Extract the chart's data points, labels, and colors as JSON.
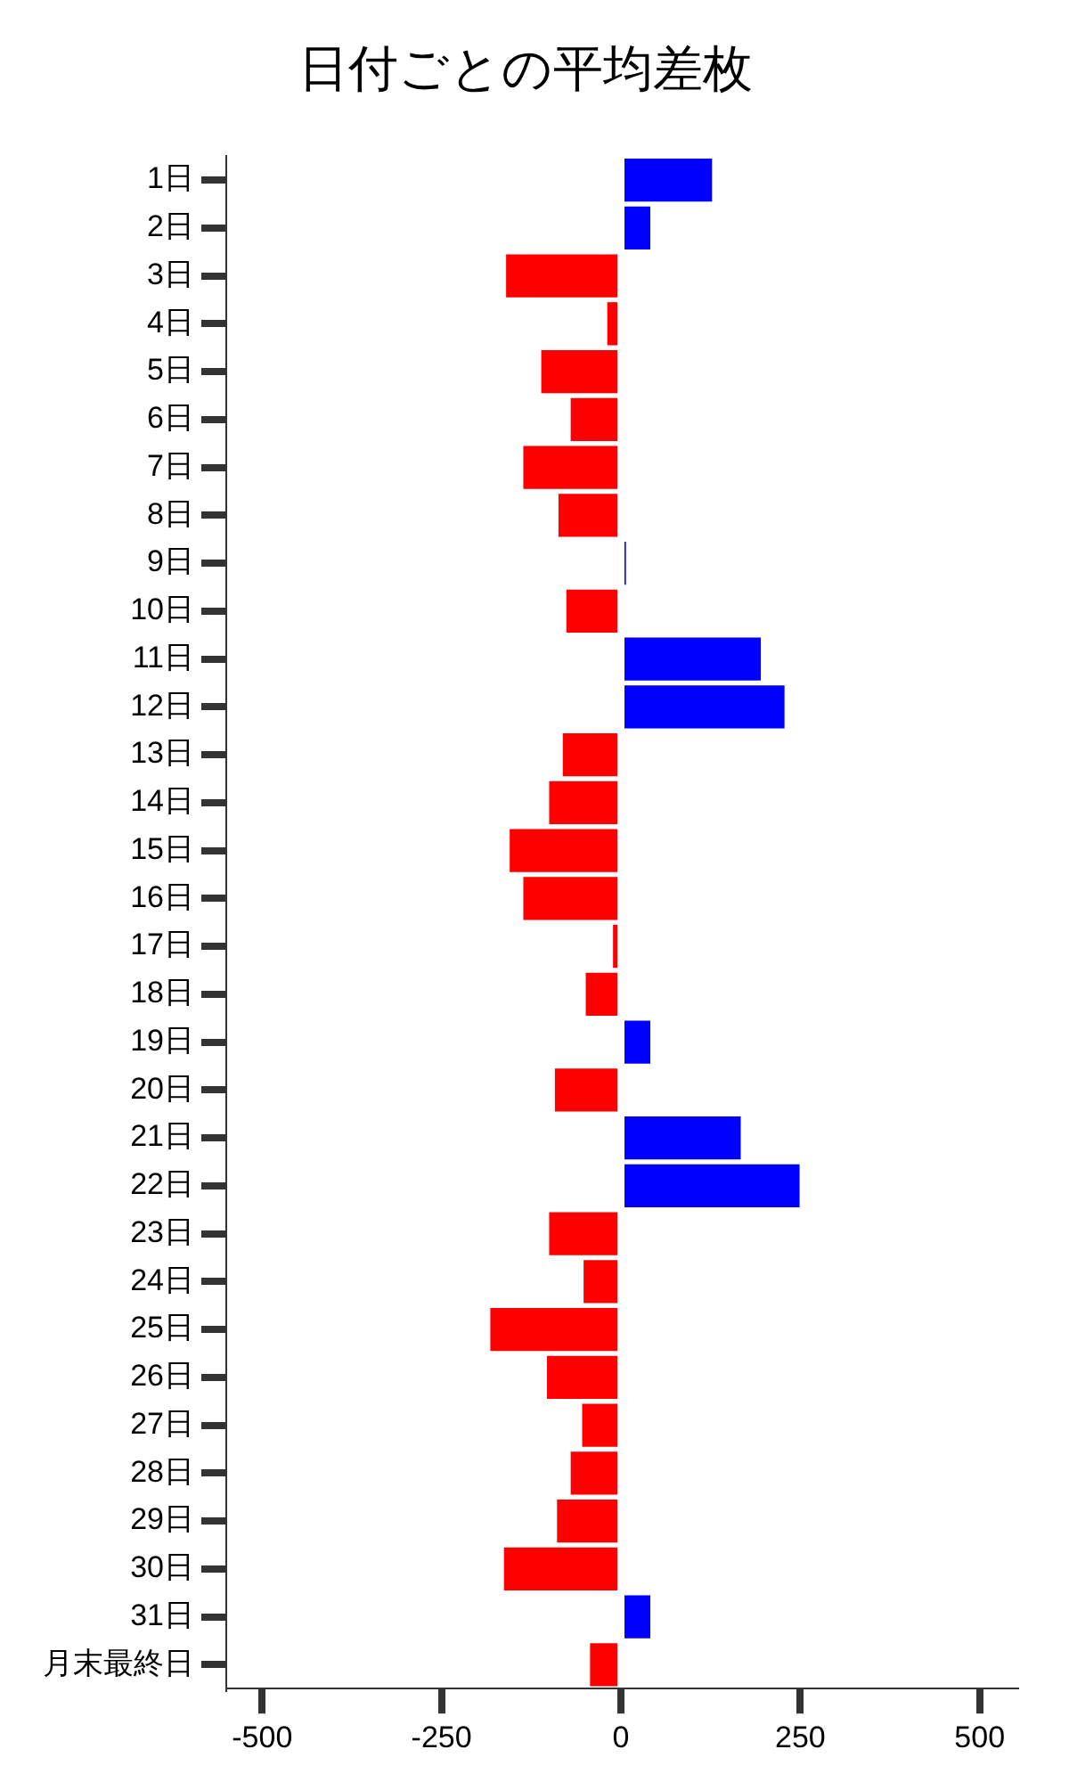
{
  "chart_data": {
    "type": "bar",
    "orientation": "horizontal",
    "title": "日付ごとの平均差枚",
    "categories": [
      "1日",
      "2日",
      "3日",
      "4日",
      "5日",
      "6日",
      "7日",
      "8日",
      "9日",
      "10日",
      "11日",
      "12日",
      "13日",
      "14日",
      "15日",
      "16日",
      "17日",
      "18日",
      "19日",
      "20日",
      "21日",
      "22日",
      "23日",
      "24日",
      "25日",
      "26日",
      "27日",
      "28日",
      "29日",
      "30日",
      "31日",
      "月末最終日"
    ],
    "values": [
      127,
      41,
      -160,
      -19,
      -111,
      -70,
      -136,
      -87,
      7,
      -76,
      195,
      228,
      -81,
      -100,
      -155,
      -136,
      -11,
      -49,
      41,
      -92,
      167,
      249,
      -100,
      -52,
      -182,
      -103,
      -54,
      -70,
      -89,
      -163,
      41,
      -43
    ],
    "colors": [
      "#0000ff",
      "#0000ff",
      "#ff0000",
      "#ff0000",
      "#ff0000",
      "#ff0000",
      "#ff0000",
      "#ff0000",
      "#0000ff",
      "#ff0000",
      "#0000ff",
      "#0000ff",
      "#ff0000",
      "#ff0000",
      "#ff0000",
      "#ff0000",
      "#ff0000",
      "#ff0000",
      "#0000ff",
      "#ff0000",
      "#0000ff",
      "#0000ff",
      "#ff0000",
      "#ff0000",
      "#ff0000",
      "#ff0000",
      "#ff0000",
      "#ff0000",
      "#ff0000",
      "#ff0000",
      "#0000ff",
      "#ff0000"
    ],
    "xlim": [
      -550,
      550
    ],
    "xticks": [
      -500,
      -250,
      0,
      250,
      500
    ]
  }
}
